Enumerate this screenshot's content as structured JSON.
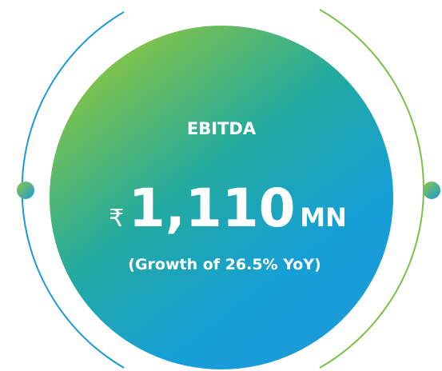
{
  "metric": {
    "label": "EBITDA",
    "currency": "₹",
    "value": "1,110",
    "unit": "MN",
    "note": "(Growth of 26.5% YoY)"
  }
}
